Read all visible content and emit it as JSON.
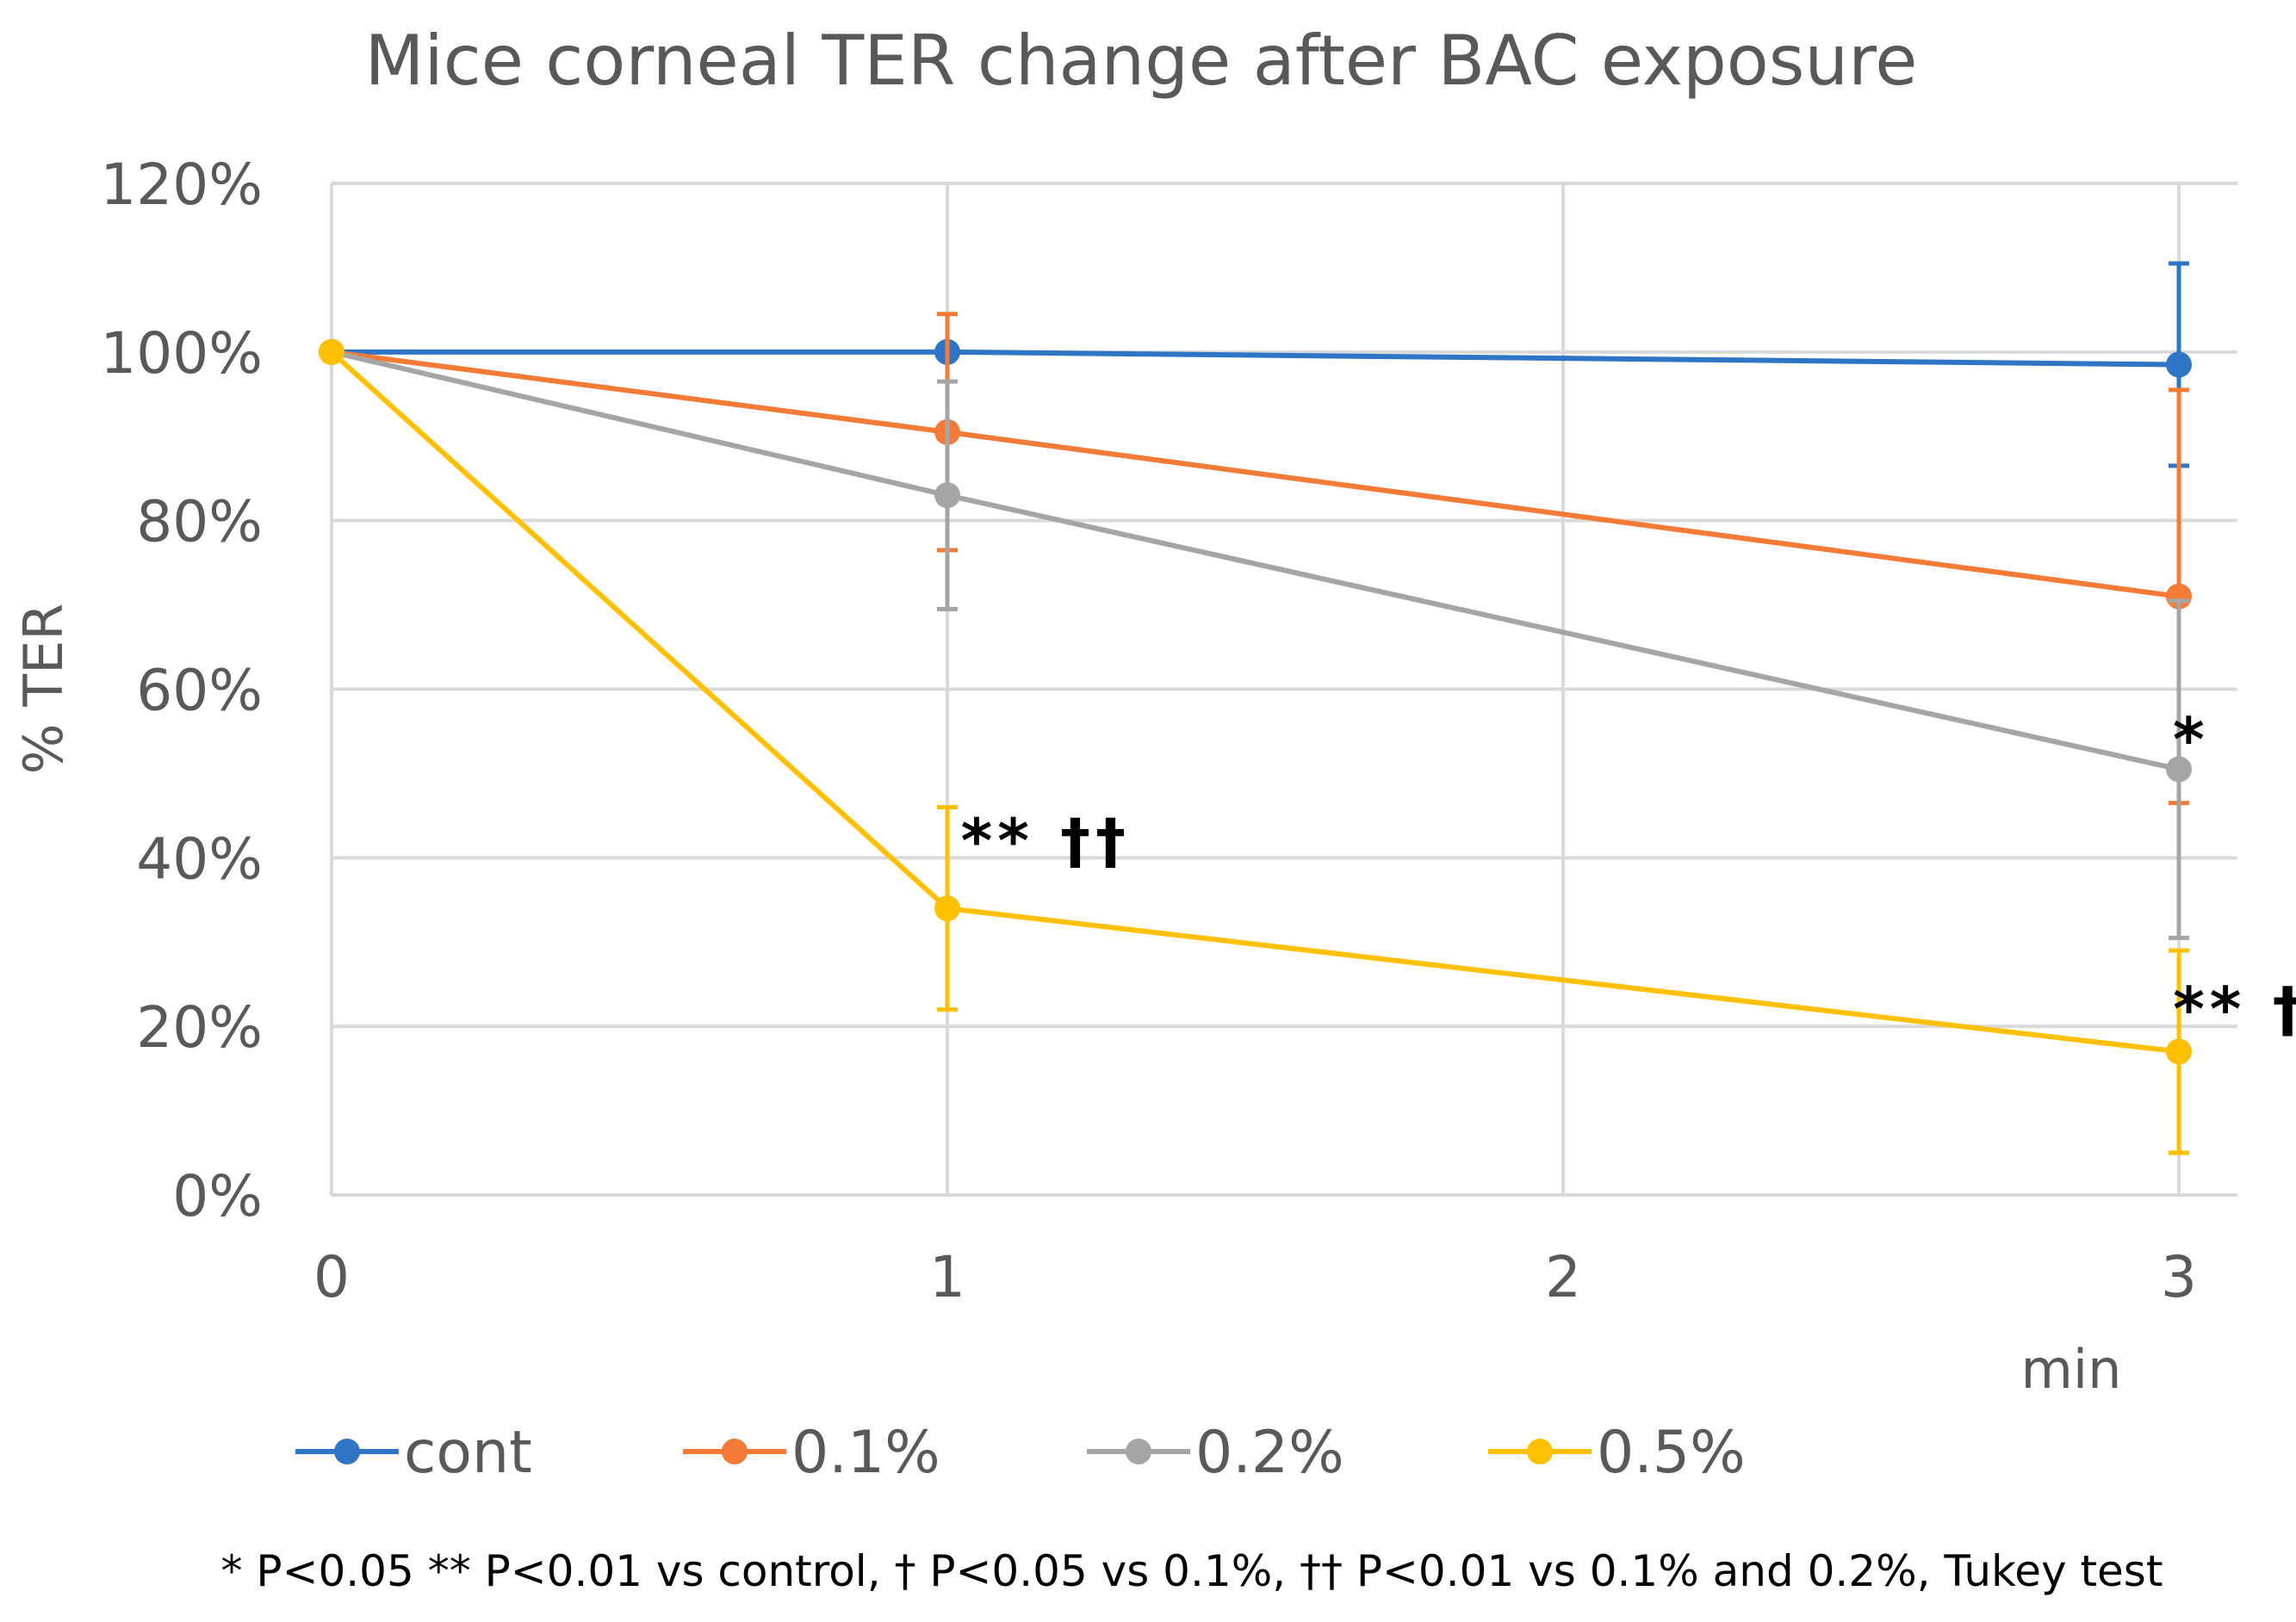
{
  "chart_data": {
    "type": "line",
    "title": "Mice corneal TER change after BAC exposure",
    "xlabel": "min",
    "ylabel": "% TER",
    "x": [
      0,
      1,
      3
    ],
    "xticks": [
      "0",
      "1",
      "2",
      "3"
    ],
    "xlim": [
      0,
      3.1
    ],
    "ylim": [
      0,
      120
    ],
    "yticks": [
      "0%",
      "20%",
      "40%",
      "60%",
      "80%",
      "100%",
      "120%"
    ],
    "grid": true,
    "legend_position": "bottom",
    "series": [
      {
        "name": "cont",
        "color": "#2f75c6",
        "values": [
          100,
          100,
          98.5
        ],
        "errors": [
          0,
          0,
          12
        ]
      },
      {
        "name": "0.1%",
        "color": "#f47b36",
        "values": [
          100,
          90.5,
          71
        ],
        "errors": [
          0,
          14,
          24.5
        ]
      },
      {
        "name": "0.2%",
        "color": "#a5a5a5",
        "values": [
          100,
          83,
          50.5
        ],
        "errors": [
          0,
          13.5,
          20
        ]
      },
      {
        "name": "0.5%",
        "color": "#ffc000",
        "values": [
          100,
          34,
          17
        ],
        "errors": [
          0,
          12,
          12
        ]
      }
    ],
    "annotations": [
      {
        "text": "** ††",
        "x": 1.16,
        "y": 42
      },
      {
        "text": "*",
        "x": 3.02,
        "y": 54
      },
      {
        "text": "** †",
        "x": 3.1,
        "y": 22
      }
    ],
    "footnote": "* P<0.05 ** P<0.01 vs control, † P<0.05 vs 0.1%, †† P<0.01 vs 0.1% and 0.2%,  Tukey test"
  }
}
